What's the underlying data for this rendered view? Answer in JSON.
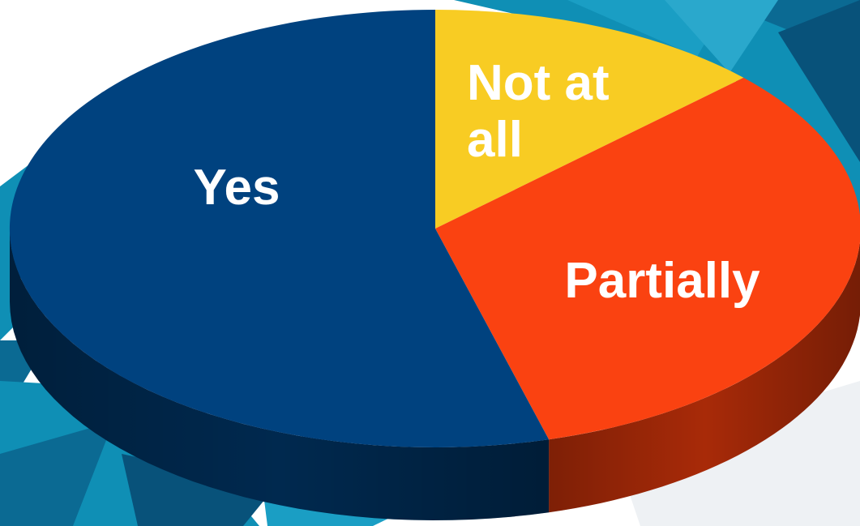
{
  "chart_data": {
    "type": "pie",
    "style": "3d",
    "slices": [
      {
        "label": "Yes",
        "value": 54.3,
        "color": "#00427f",
        "side_color": "#00294f"
      },
      {
        "label": "Partially",
        "value": 32.8,
        "color": "#fa4211",
        "side_color": "#a82a08"
      },
      {
        "label": "Not at all",
        "value": 12.9,
        "color": "#f8cc23",
        "side_color": "#b08e12"
      }
    ],
    "legend": "none",
    "labels_on_slices": true
  },
  "slice_label_lines": {
    "yes": [
      "Yes"
    ],
    "partially": [
      "Partially"
    ],
    "not_at_all": [
      "Not at",
      "all"
    ]
  },
  "colors": {
    "background": "#ffffff",
    "background_accent": "#0f8fb5",
    "background_dark": "#0a4a72"
  }
}
